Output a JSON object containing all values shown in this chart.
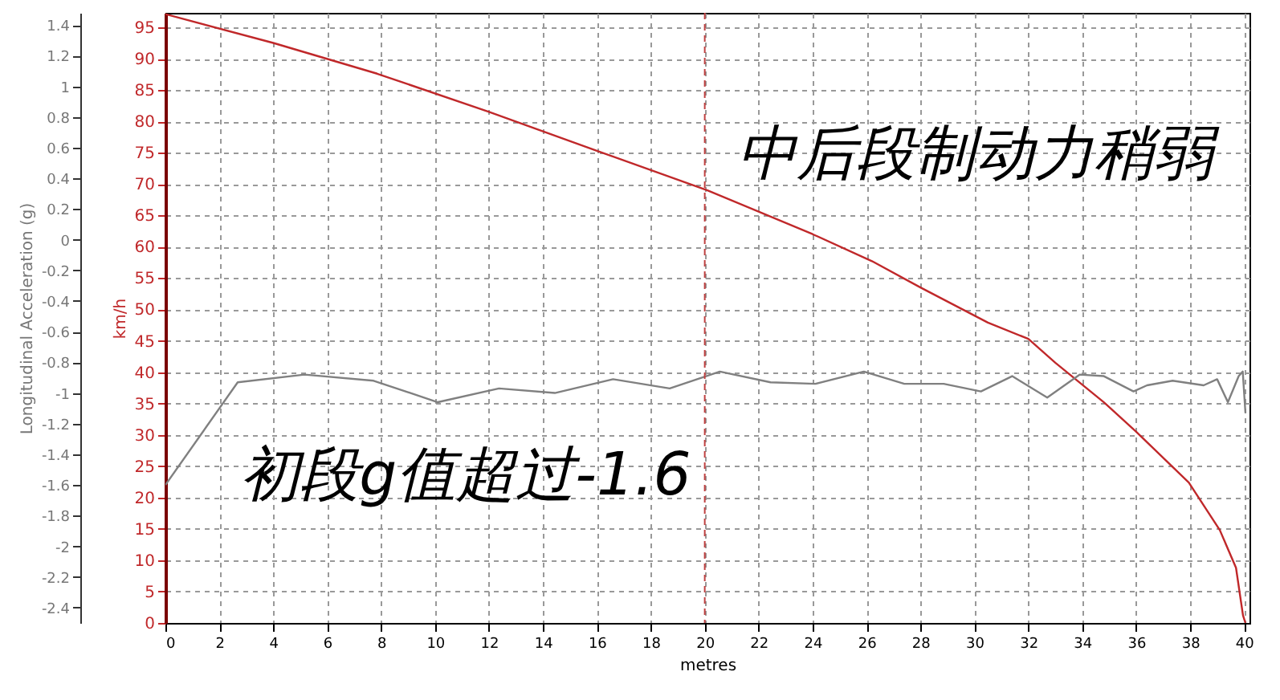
{
  "chart_data": {
    "type": "line",
    "xlabel": "metres",
    "ylabel": "Longitudinal Acceleration (g)",
    "y2label": "km/h",
    "xlim": [
      0,
      40.2
    ],
    "xticks": [
      0,
      2,
      4,
      6,
      8,
      10,
      12,
      14,
      16,
      18,
      20,
      22,
      24,
      26,
      28,
      30,
      32,
      34,
      36,
      38,
      40
    ],
    "ylim": [
      -2.5,
      1.48
    ],
    "yticks": [
      -2.4,
      -2.2,
      -2,
      -1.8,
      -1.6,
      -1.4,
      -1.2,
      -1,
      -0.8,
      -0.6,
      -0.4,
      -0.2,
      0,
      0.2,
      0.4,
      0.6,
      0.8,
      1,
      1.2,
      1.4
    ],
    "y2lim": [
      0,
      97.3
    ],
    "y2ticks": [
      0,
      5,
      10,
      15,
      20,
      25,
      30,
      35,
      40,
      45,
      50,
      55,
      60,
      65,
      70,
      75,
      80,
      85,
      90,
      95
    ],
    "grid": true,
    "marker": "none",
    "line_style": "solid",
    "series": [
      {
        "color": "#c0282a",
        "axis": "y2",
        "x": [
          0,
          4,
          7.85,
          12,
          16,
          20.1,
          24,
          26.2,
          28,
          30.5,
          32,
          33,
          34.8,
          36,
          37.95,
          39.1,
          39.7,
          39.96,
          40.05
        ],
        "values": [
          97.1,
          92.5,
          87.6,
          81.5,
          75.3,
          69,
          62,
          57.7,
          53.5,
          47.9,
          45.3,
          41.5,
          35.2,
          30.5,
          22.4,
          14.8,
          8.8,
          1.2,
          0
        ]
      },
      {
        "color": "#808080",
        "x": [
          0,
          2.68,
          5.16,
          7.72,
          10.1,
          12.37,
          14.44,
          16.6,
          18.7,
          20.56,
          22.44,
          24.1,
          25.9,
          27.4,
          28.86,
          30.24,
          31.4,
          32.7,
          33.9,
          34.8,
          35.9,
          36.4,
          37.35,
          38.5,
          39,
          39.4,
          39.8,
          39.95,
          40.05
        ],
        "values": [
          -1.6,
          -0.93,
          -0.88,
          -0.92,
          -1.06,
          -0.97,
          -1,
          -0.91,
          -0.97,
          -0.86,
          -0.93,
          -0.94,
          -0.86,
          -0.94,
          -0.94,
          -0.99,
          -0.89,
          -1.03,
          -0.88,
          -0.89,
          -0.99,
          -0.95,
          -0.92,
          -0.95,
          -0.91,
          -1.06,
          -0.89,
          -0.86,
          -1.13
        ]
      }
    ],
    "ref_lines": [
      {
        "axis": "x",
        "value": 20,
        "color": "#c04040",
        "line_style": "dashed"
      }
    ],
    "annotations": [
      "中后段制动力稍弱",
      "初段g值超过-1.6"
    ]
  }
}
